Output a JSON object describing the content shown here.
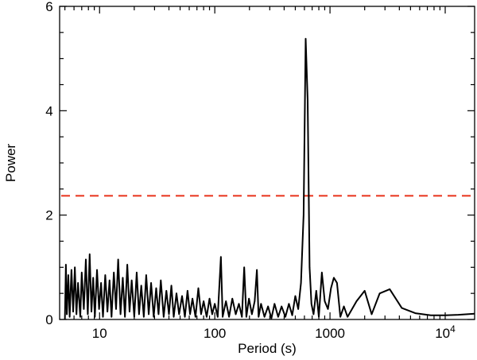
{
  "chart_data": {
    "type": "line",
    "xlabel": "Period (s)",
    "ylabel": "Power",
    "x_scale": "log",
    "xlim": [
      4.5,
      18000
    ],
    "ylim": [
      0,
      6
    ],
    "x_tick_labels": [
      {
        "value": 10,
        "label": "10"
      },
      {
        "value": 100,
        "label": "100"
      },
      {
        "value": 1000,
        "label": "1000"
      },
      {
        "value": 10000,
        "label": "10",
        "exponent": "4"
      }
    ],
    "y_tick_labels": [
      {
        "value": 0,
        "label": "0"
      },
      {
        "value": 2,
        "label": "2"
      },
      {
        "value": 4,
        "label": "4"
      },
      {
        "value": 6,
        "label": "6"
      }
    ],
    "grid": false,
    "series": [
      {
        "color": "#000000",
        "style": "solid",
        "points": [
          [
            5.0,
            0.0
          ],
          [
            5.1,
            1.05
          ],
          [
            5.2,
            0.1
          ],
          [
            5.35,
            0.85
          ],
          [
            5.5,
            0.05
          ],
          [
            5.7,
            0.95
          ],
          [
            5.9,
            0.15
          ],
          [
            6.1,
            1.0
          ],
          [
            6.3,
            0.1
          ],
          [
            6.5,
            0.7
          ],
          [
            6.8,
            0.05
          ],
          [
            7.0,
            0.9
          ],
          [
            7.3,
            0.2
          ],
          [
            7.6,
            1.15
          ],
          [
            7.9,
            0.1
          ],
          [
            8.2,
            1.25
          ],
          [
            8.5,
            0.15
          ],
          [
            8.8,
            0.8
          ],
          [
            9.1,
            0.05
          ],
          [
            9.5,
            0.95
          ],
          [
            9.9,
            0.2
          ],
          [
            10.3,
            0.7
          ],
          [
            10.7,
            0.05
          ],
          [
            11.2,
            0.85
          ],
          [
            11.7,
            0.15
          ],
          [
            12.2,
            0.75
          ],
          [
            12.7,
            0.05
          ],
          [
            13.3,
            0.9
          ],
          [
            13.9,
            0.2
          ],
          [
            14.5,
            1.15
          ],
          [
            15.2,
            0.1
          ],
          [
            15.9,
            0.8
          ],
          [
            16.6,
            0.05
          ],
          [
            17.4,
            1.05
          ],
          [
            18.2,
            0.15
          ],
          [
            19.0,
            0.75
          ],
          [
            20.0,
            0.05
          ],
          [
            21.0,
            0.9
          ],
          [
            22.0,
            0.1
          ],
          [
            23.0,
            0.65
          ],
          [
            24.2,
            0.05
          ],
          [
            25.4,
            0.85
          ],
          [
            26.7,
            0.1
          ],
          [
            28.0,
            0.7
          ],
          [
            29.5,
            0.05
          ],
          [
            31.0,
            0.6
          ],
          [
            32.5,
            0.1
          ],
          [
            34.0,
            0.75
          ],
          [
            36.0,
            0.05
          ],
          [
            38.0,
            0.55
          ],
          [
            40.0,
            0.1
          ],
          [
            42.0,
            0.65
          ],
          [
            44.0,
            0.05
          ],
          [
            46.5,
            0.5
          ],
          [
            49.0,
            0.1
          ],
          [
            52.0,
            0.45
          ],
          [
            55.0,
            0.05
          ],
          [
            58.0,
            0.55
          ],
          [
            61.0,
            0.1
          ],
          [
            64.0,
            0.4
          ],
          [
            68.0,
            0.05
          ],
          [
            72.0,
            0.6
          ],
          [
            76.0,
            0.1
          ],
          [
            80.0,
            0.35
          ],
          [
            85.0,
            0.05
          ],
          [
            90.0,
            0.4
          ],
          [
            95.0,
            0.1
          ],
          [
            100.0,
            0.3
          ],
          [
            106.0,
            0.05
          ],
          [
            113.0,
            1.2
          ],
          [
            117.0,
            0.05
          ],
          [
            125.0,
            0.35
          ],
          [
            133.0,
            0.05
          ],
          [
            142.0,
            0.4
          ],
          [
            152.0,
            0.1
          ],
          [
            162.0,
            0.3
          ],
          [
            172.0,
            0.05
          ],
          [
            180.0,
            1.0
          ],
          [
            188.0,
            0.05
          ],
          [
            198.0,
            0.4
          ],
          [
            210.0,
            0.1
          ],
          [
            222.0,
            0.35
          ],
          [
            232.0,
            0.95
          ],
          [
            240.0,
            0.05
          ],
          [
            252.0,
            0.3
          ],
          [
            270.0,
            0.05
          ],
          [
            290.0,
            0.25
          ],
          [
            310.0,
            0.02
          ],
          [
            330.0,
            0.3
          ],
          [
            355.0,
            0.05
          ],
          [
            380.0,
            0.25
          ],
          [
            410.0,
            0.05
          ],
          [
            440.0,
            0.3
          ],
          [
            470.0,
            0.08
          ],
          [
            500.0,
            0.45
          ],
          [
            530.0,
            0.2
          ],
          [
            560.0,
            0.7
          ],
          [
            590.0,
            2.0
          ],
          [
            615.0,
            5.38
          ],
          [
            640.0,
            4.2
          ],
          [
            665.0,
            1.0
          ],
          [
            690.0,
            0.3
          ],
          [
            720.0,
            0.1
          ],
          [
            760.0,
            0.55
          ],
          [
            800.0,
            0.05
          ],
          [
            850.0,
            0.9
          ],
          [
            900.0,
            0.35
          ],
          [
            960.0,
            0.2
          ],
          [
            1020.0,
            0.6
          ],
          [
            1080.0,
            0.8
          ],
          [
            1150.0,
            0.7
          ],
          [
            1230.0,
            0.05
          ],
          [
            1320.0,
            0.25
          ],
          [
            1420.0,
            0.05
          ],
          [
            1700.0,
            0.35
          ],
          [
            2000.0,
            0.55
          ],
          [
            2300.0,
            0.1
          ],
          [
            2700.0,
            0.5
          ],
          [
            3300.0,
            0.58
          ],
          [
            4200.0,
            0.22
          ],
          [
            5500.0,
            0.12
          ],
          [
            7500.0,
            0.08
          ],
          [
            10000.0,
            0.08
          ],
          [
            13000.0,
            0.09
          ],
          [
            18000.0,
            0.11
          ]
        ]
      }
    ],
    "threshold": {
      "y": 2.37,
      "color": "#e8321a",
      "style": "dashed"
    }
  }
}
